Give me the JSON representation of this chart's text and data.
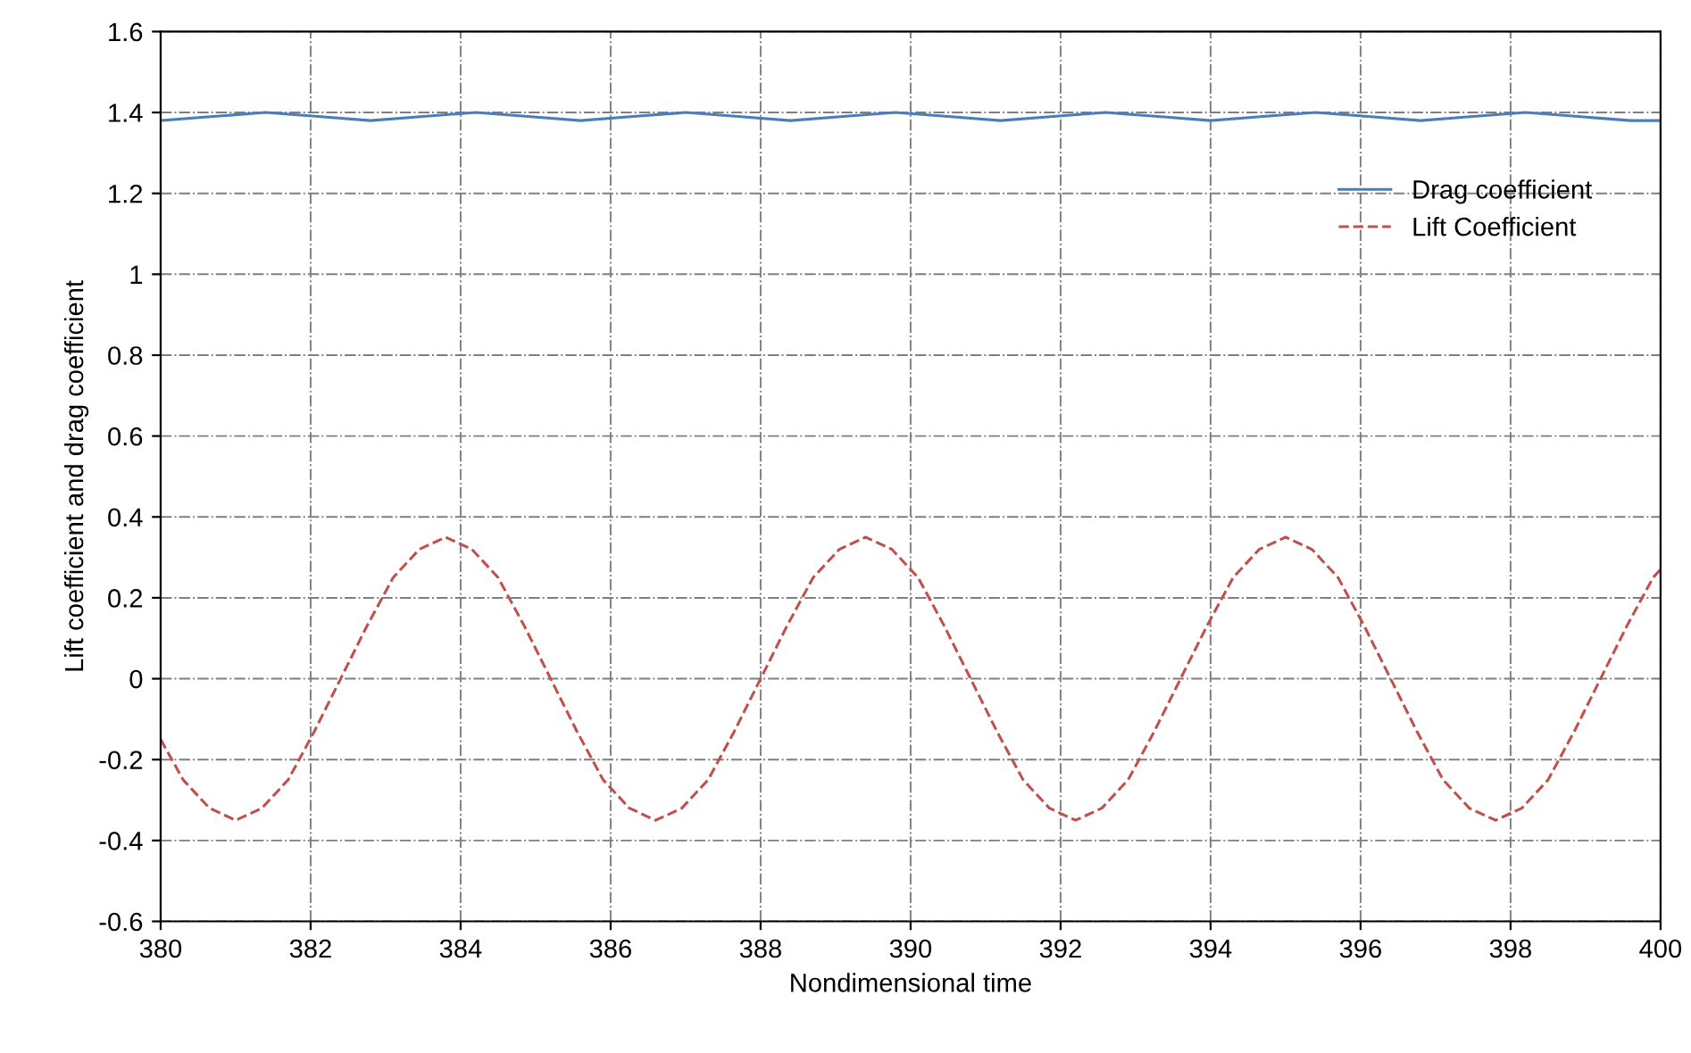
{
  "chart_data": {
    "type": "line",
    "xlabel": "Nondimensional time",
    "ylabel": "Lift coefficient and drag coefficient",
    "xlim": [
      380,
      400
    ],
    "xticks": [
      380,
      382,
      384,
      386,
      388,
      390,
      392,
      394,
      396,
      398,
      400
    ],
    "ylim": [
      -0.6,
      1.6
    ],
    "yticks": [
      -0.6,
      -0.4,
      -0.2,
      0,
      0.2,
      0.4,
      0.6,
      0.8,
      1,
      1.2,
      1.4,
      1.6
    ],
    "grid": true,
    "legend": "top right",
    "series": [
      {
        "name": "Drag coefficient",
        "color": "#4a7ebb",
        "line_style": "solid",
        "x": [
          380,
          380.7,
          381.4,
          382.1,
          382.8,
          383.5,
          384.2,
          384.9,
          385.6,
          386.3,
          387,
          387.7,
          388.4,
          389.1,
          389.8,
          390.5,
          391.2,
          391.9,
          392.6,
          393.3,
          394,
          394.7,
          395.4,
          396.1,
          396.8,
          397.5,
          398.2,
          398.9,
          399.6,
          400
        ],
        "values": [
          1.38,
          1.39,
          1.4,
          1.39,
          1.38,
          1.39,
          1.4,
          1.39,
          1.38,
          1.39,
          1.4,
          1.39,
          1.38,
          1.39,
          1.4,
          1.39,
          1.38,
          1.39,
          1.4,
          1.39,
          1.38,
          1.39,
          1.4,
          1.39,
          1.38,
          1.39,
          1.4,
          1.39,
          1.38,
          1.38
        ]
      },
      {
        "name": "Lift Coefficient",
        "color": "#c0504d",
        "line_style": "dashed",
        "x": [
          380,
          380.3,
          380.65,
          381,
          381.35,
          381.7,
          382.05,
          382.4,
          382.75,
          383.1,
          383.45,
          383.8,
          384.15,
          384.5,
          384.85,
          385.2,
          385.55,
          385.9,
          386.25,
          386.6,
          386.95,
          387.3,
          387.65,
          388,
          388.35,
          388.7,
          389.05,
          389.4,
          389.75,
          390.1,
          390.45,
          390.8,
          391.15,
          391.5,
          391.85,
          392.2,
          392.55,
          392.9,
          393.25,
          393.6,
          393.95,
          394.3,
          394.65,
          395,
          395.35,
          395.7,
          396.05,
          396.4,
          396.75,
          397.1,
          397.45,
          397.8,
          398.15,
          398.5,
          398.85,
          399.2,
          399.55,
          399.9,
          400
        ],
        "values": [
          -0.15,
          -0.25,
          -0.32,
          -0.35,
          -0.32,
          -0.25,
          -0.13,
          0,
          0.13,
          0.25,
          0.32,
          0.35,
          0.32,
          0.25,
          0.13,
          0,
          -0.13,
          -0.25,
          -0.32,
          -0.35,
          -0.32,
          -0.25,
          -0.13,
          0,
          0.13,
          0.25,
          0.32,
          0.35,
          0.32,
          0.25,
          0.13,
          0,
          -0.13,
          -0.25,
          -0.32,
          -0.35,
          -0.32,
          -0.25,
          -0.13,
          0,
          0.13,
          0.25,
          0.32,
          0.35,
          0.32,
          0.25,
          0.13,
          0,
          -0.13,
          -0.25,
          -0.32,
          -0.35,
          -0.32,
          -0.25,
          -0.13,
          0,
          0.13,
          0.25,
          0.27
        ]
      }
    ]
  }
}
